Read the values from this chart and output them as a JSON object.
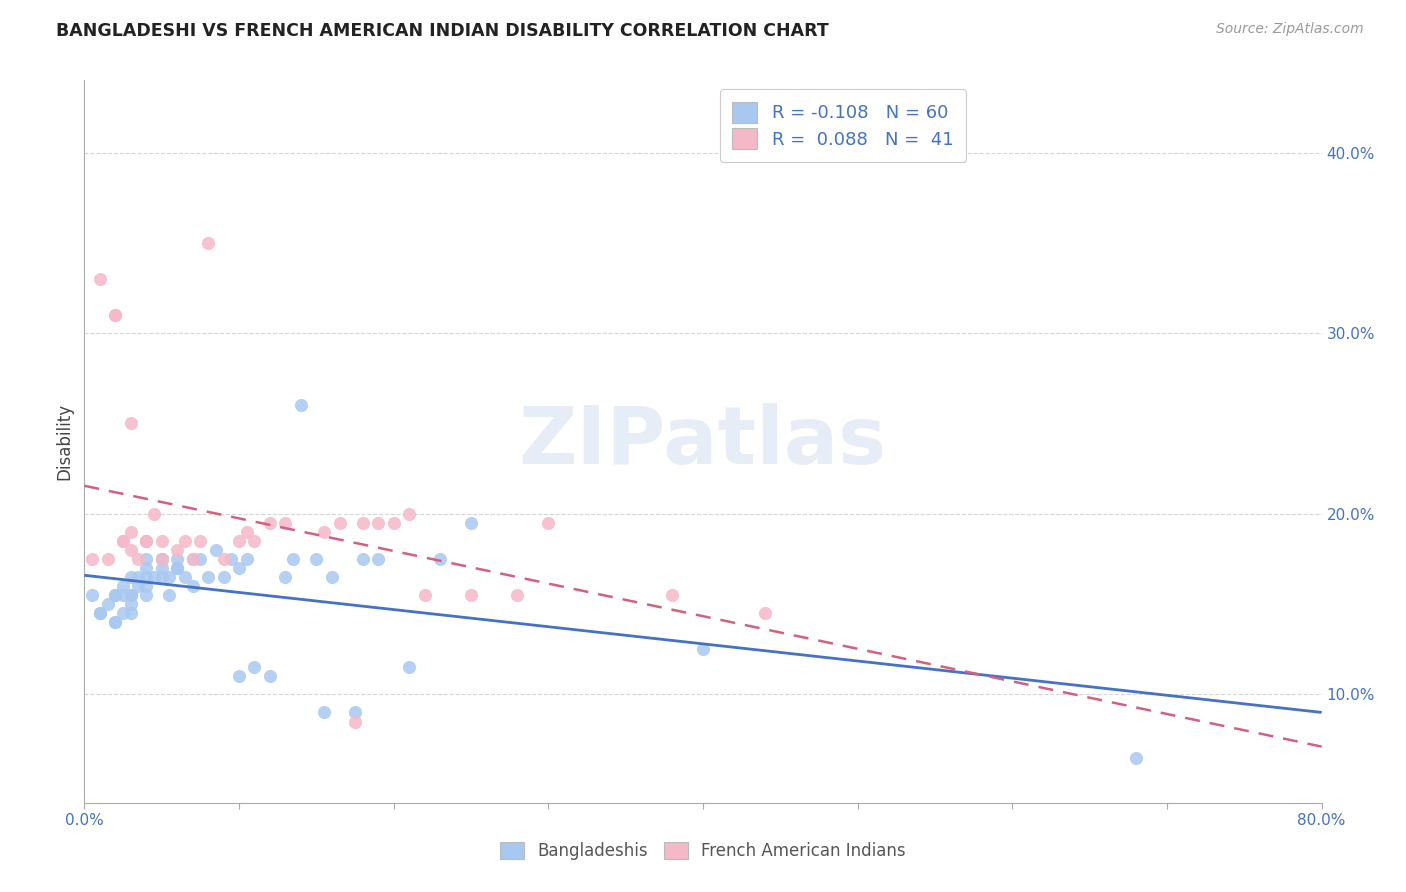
{
  "title": "BANGLADESHI VS FRENCH AMERICAN INDIAN DISABILITY CORRELATION CHART",
  "source": "Source: ZipAtlas.com",
  "ylabel": "Disability",
  "xlim": [
    0.0,
    0.8
  ],
  "ylim": [
    0.04,
    0.44
  ],
  "xticks": [
    0.0,
    0.1,
    0.2,
    0.3,
    0.4,
    0.5,
    0.6,
    0.7,
    0.8
  ],
  "xticklabels_ends": [
    "0.0%",
    "80.0%"
  ],
  "yticks": [
    0.1,
    0.2,
    0.3,
    0.4
  ],
  "yticklabels": [
    "10.0%",
    "20.0%",
    "30.0%",
    "40.0%"
  ],
  "legend_R_blue": "-0.108",
  "legend_N_blue": "60",
  "legend_R_pink": "0.088",
  "legend_N_pink": "41",
  "watermark": "ZIPatlas",
  "blue_color": "#a8c8f0",
  "pink_color": "#f5b8c8",
  "blue_line_color": "#4472c4",
  "pink_line_color": "#d46080",
  "tick_color": "#4472c4",
  "grid_color": "#cccccc",
  "bangladeshis_x": [
    0.005,
    0.01,
    0.01,
    0.015,
    0.02,
    0.02,
    0.02,
    0.02,
    0.025,
    0.025,
    0.025,
    0.03,
    0.03,
    0.03,
    0.03,
    0.03,
    0.035,
    0.035,
    0.04,
    0.04,
    0.04,
    0.04,
    0.04,
    0.045,
    0.05,
    0.05,
    0.05,
    0.05,
    0.055,
    0.055,
    0.06,
    0.06,
    0.06,
    0.065,
    0.07,
    0.07,
    0.075,
    0.08,
    0.085,
    0.09,
    0.095,
    0.1,
    0.1,
    0.105,
    0.11,
    0.12,
    0.13,
    0.135,
    0.14,
    0.15,
    0.155,
    0.16,
    0.175,
    0.18,
    0.19,
    0.21,
    0.23,
    0.25,
    0.4,
    0.68
  ],
  "bangladeshis_y": [
    0.155,
    0.145,
    0.145,
    0.15,
    0.14,
    0.155,
    0.155,
    0.14,
    0.145,
    0.155,
    0.16,
    0.145,
    0.15,
    0.155,
    0.165,
    0.155,
    0.16,
    0.165,
    0.16,
    0.155,
    0.165,
    0.17,
    0.175,
    0.165,
    0.165,
    0.175,
    0.17,
    0.175,
    0.165,
    0.155,
    0.175,
    0.17,
    0.17,
    0.165,
    0.175,
    0.16,
    0.175,
    0.165,
    0.18,
    0.165,
    0.175,
    0.17,
    0.11,
    0.175,
    0.115,
    0.11,
    0.165,
    0.175,
    0.26,
    0.175,
    0.09,
    0.165,
    0.09,
    0.175,
    0.175,
    0.115,
    0.175,
    0.195,
    0.125,
    0.065
  ],
  "french_x": [
    0.005,
    0.01,
    0.015,
    0.02,
    0.02,
    0.025,
    0.025,
    0.03,
    0.03,
    0.03,
    0.035,
    0.04,
    0.04,
    0.04,
    0.045,
    0.05,
    0.05,
    0.06,
    0.065,
    0.07,
    0.075,
    0.08,
    0.09,
    0.1,
    0.105,
    0.11,
    0.12,
    0.13,
    0.155,
    0.165,
    0.175,
    0.18,
    0.19,
    0.2,
    0.21,
    0.22,
    0.25,
    0.28,
    0.3,
    0.38,
    0.44
  ],
  "french_y": [
    0.175,
    0.33,
    0.175,
    0.31,
    0.31,
    0.185,
    0.185,
    0.18,
    0.19,
    0.25,
    0.175,
    0.185,
    0.185,
    0.185,
    0.2,
    0.175,
    0.185,
    0.18,
    0.185,
    0.175,
    0.185,
    0.35,
    0.175,
    0.185,
    0.19,
    0.185,
    0.195,
    0.195,
    0.19,
    0.195,
    0.085,
    0.195,
    0.195,
    0.195,
    0.2,
    0.155,
    0.155,
    0.155,
    0.195,
    0.155,
    0.145
  ]
}
